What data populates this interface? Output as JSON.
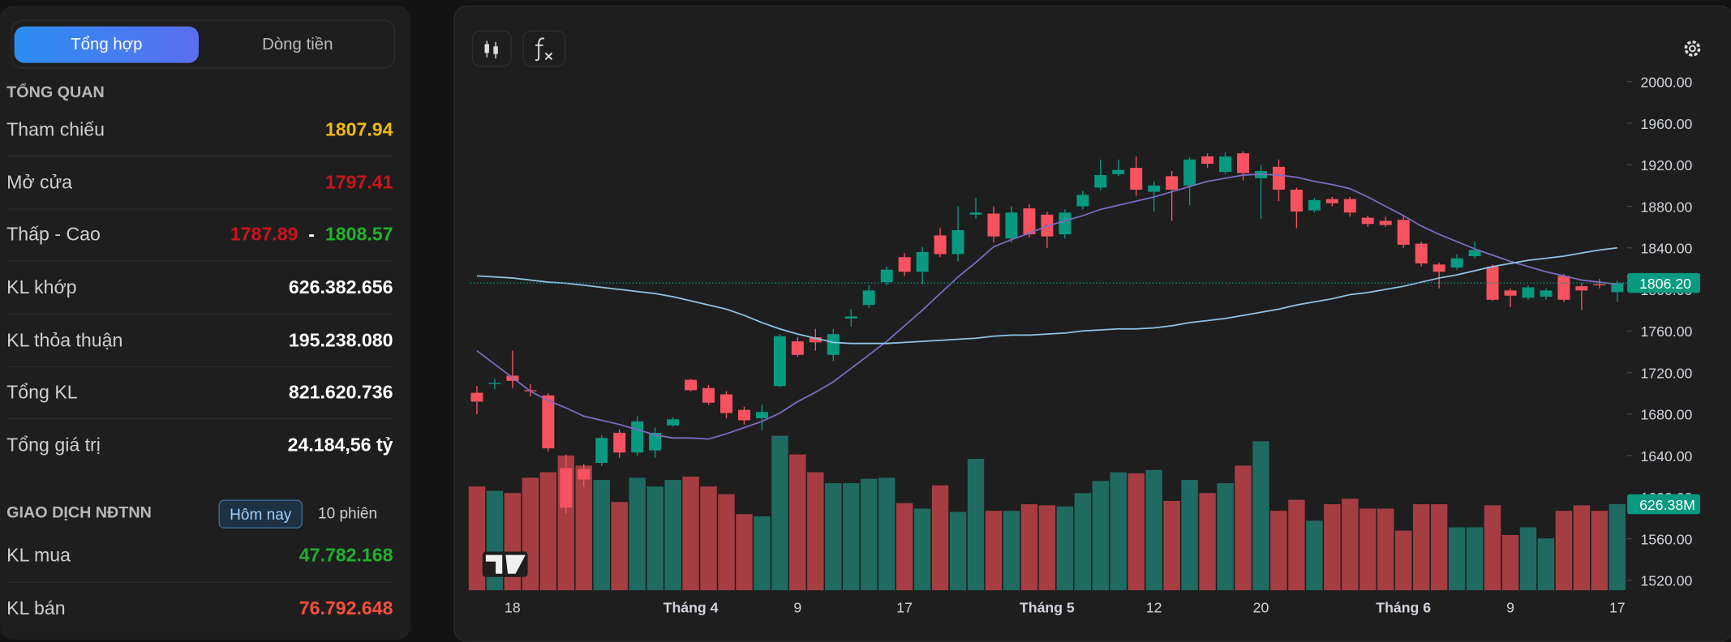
{
  "tabs": [
    "Tổng hợp",
    "Dòng tiền"
  ],
  "overview": {
    "title": "TỔNG QUAN",
    "rows": [
      {
        "label": "Tham chiếu",
        "value": "1807.94"
      },
      {
        "label": "Mở cửa",
        "value": "1797.41"
      },
      {
        "label": "Thấp - Cao",
        "low": "1787.89",
        "separator": "-",
        "high": "1808.57"
      },
      {
        "label": "KL khớp",
        "value": "626.382.656"
      },
      {
        "label": "KL thỏa thuận",
        "value": "195.238.080"
      },
      {
        "label": "Tổng KL",
        "value": "821.620.736"
      },
      {
        "label": "Tổng giá trị",
        "value": "24.184,56 tỷ"
      }
    ]
  },
  "foreign": {
    "title": "GIAO DỊCH NĐTNN",
    "buttons": [
      "Hôm nay",
      "10 phiên"
    ],
    "rows": [
      {
        "label": "KL mua",
        "value": "47.782.168"
      },
      {
        "label": "KL bán",
        "value": "76.792.648"
      }
    ]
  },
  "chart_data": {
    "type": "candlestick",
    "categories": [
      null,
      null,
      "18",
      null,
      null,
      null,
      null,
      null,
      null,
      null,
      null,
      null,
      "Tháng 4",
      null,
      null,
      null,
      null,
      null,
      "9",
      null,
      null,
      null,
      null,
      null,
      "17",
      null,
      null,
      null,
      null,
      null,
      null,
      null,
      "Tháng 5",
      null,
      null,
      null,
      null,
      null,
      "12",
      null,
      null,
      null,
      null,
      null,
      "20",
      null,
      null,
      null,
      null,
      null,
      null,
      null,
      "Tháng 6",
      null,
      null,
      null,
      null,
      null,
      "9",
      null,
      null,
      null,
      null,
      null,
      "17"
    ],
    "open": [
      1700.5,
      1709,
      1717,
      1703,
      1698,
      1628,
      1627,
      1633,
      1662,
      1643,
      1645,
      1669,
      1713,
      1705,
      1699,
      1684,
      1676,
      1707,
      1750,
      1754,
      1737,
      1772,
      1785,
      1807,
      1831,
      1817,
      1852,
      1834,
      1872,
      1873,
      1849,
      1878,
      1872,
      1853,
      1880,
      1898,
      1911,
      1917,
      1894,
      1909,
      1900,
      1928,
      1913,
      1931,
      1907,
      1918,
      1896,
      1876,
      1887,
      1887,
      1869,
      1866,
      1867,
      1844,
      1824,
      1821,
      1832,
      1822,
      1799,
      1792,
      1793,
      1813,
      1803,
      1805,
      1797.41
    ],
    "high": [
      1707,
      1714,
      1741,
      1709,
      1700,
      1641,
      1632,
      1660,
      1665,
      1678,
      1667,
      1677,
      1714,
      1708,
      1702,
      1687,
      1689,
      1757,
      1754,
      1762,
      1762,
      1781,
      1804,
      1822,
      1835,
      1841,
      1859,
      1880,
      1888,
      1880,
      1880,
      1882,
      1875,
      1877,
      1895,
      1925,
      1925,
      1928,
      1904,
      1914,
      1927,
      1931,
      1932,
      1933,
      1920,
      1925,
      1898,
      1888,
      1889,
      1889,
      1871,
      1870,
      1870,
      1846,
      1826,
      1834,
      1846,
      1824,
      1801,
      1804,
      1801,
      1815,
      1806,
      1810,
      1808.57
    ],
    "low": [
      1680,
      1704,
      1705,
      1697,
      1644,
      1584,
      1610,
      1630,
      1638,
      1640,
      1638,
      1668,
      1702,
      1689,
      1676,
      1670,
      1664,
      1706,
      1735,
      1741,
      1731,
      1764,
      1782,
      1804,
      1813,
      1805,
      1831,
      1827,
      1868,
      1845,
      1845,
      1850,
      1840,
      1849,
      1877,
      1895,
      1909,
      1890,
      1875,
      1866,
      1881,
      1917,
      1911,
      1905,
      1868,
      1885,
      1859,
      1874,
      1880,
      1870,
      1860,
      1860,
      1840,
      1822,
      1801,
      1819,
      1830,
      1789,
      1783,
      1790,
      1790,
      1788,
      1780,
      1801,
      1787.89
    ],
    "close": [
      1692,
      1710,
      1712,
      1702,
      1647,
      1590,
      1617,
      1657,
      1643,
      1673,
      1662,
      1675,
      1703,
      1691,
      1681,
      1674,
      1682,
      1755,
      1737,
      1749,
      1757,
      1774,
      1799,
      1819,
      1817,
      1836,
      1834,
      1857,
      1874,
      1851,
      1874,
      1853,
      1851,
      1874,
      1891,
      1910,
      1915,
      1896,
      1900,
      1896,
      1925,
      1921,
      1928,
      1912,
      1914,
      1896,
      1875,
      1886,
      1883,
      1874,
      1863,
      1862,
      1843,
      1825,
      1817,
      1830,
      1838,
      1790,
      1794,
      1802,
      1799,
      1790,
      1799,
      1804,
      1806.2
    ],
    "volume": [
      755,
      723,
      707,
      819,
      859,
      980,
      907,
      803,
      642,
      819,
      755,
      803,
      827,
      755,
      699,
      554,
      538,
      1124,
      988,
      859,
      779,
      779,
      811,
      819,
      634,
      594,
      763,
      570,
      956,
      578,
      578,
      626,
      618,
      610,
      707,
      795,
      859,
      851,
      875,
      650,
      803,
      707,
      779,
      907,
      1084,
      578,
      658,
      506,
      626,
      666,
      594,
      594,
      434,
      626,
      626,
      458,
      458,
      618,
      402,
      458,
      377,
      578,
      618,
      578,
      626.38
    ],
    "ma_lines": [
      {
        "color": "#7e6bc4",
        "values": [
          1741,
          1728,
          1715,
          1702,
          1693,
          1686,
          1678,
          1674,
          1670,
          1665,
          1660,
          1657,
          1657,
          1656,
          1661,
          1667,
          1673,
          1681,
          1692,
          1701,
          1711,
          1724,
          1737,
          1750,
          1765,
          1780,
          1796,
          1812,
          1826,
          1841,
          1848,
          1854,
          1861,
          1866,
          1871,
          1877,
          1881,
          1885,
          1889,
          1894,
          1899,
          1904,
          1907,
          1910,
          1911,
          1910,
          1908,
          1904,
          1901,
          1897,
          1889,
          1880,
          1871,
          1861,
          1853,
          1846,
          1839,
          1833,
          1827,
          1822,
          1817,
          1813,
          1809,
          1807,
          1805
        ]
      },
      {
        "color": "#8fc3e6",
        "values": [
          1813,
          1812,
          1811,
          1809,
          1807,
          1806,
          1804,
          1802,
          1800,
          1798,
          1796,
          1793,
          1789,
          1785,
          1781,
          1775,
          1768,
          1762,
          1757,
          1753,
          1749,
          1748,
          1748,
          1748,
          1749,
          1750,
          1751,
          1752,
          1753,
          1755,
          1756,
          1756,
          1757,
          1758,
          1760,
          1761,
          1762,
          1762,
          1763,
          1765,
          1768,
          1770,
          1772,
          1775,
          1778,
          1781,
          1785,
          1788,
          1791,
          1795,
          1797,
          1800,
          1803,
          1807,
          1811,
          1814,
          1818,
          1822,
          1825,
          1828,
          1830,
          1832,
          1835,
          1838,
          1840
        ]
      }
    ],
    "up_color": "#089981",
    "down_color": "#f7525f",
    "volume_up_color": "#1f6b61",
    "volume_down_color": "#a63d43",
    "ylim": [
      1520,
      2000
    ],
    "yticks": [
      {
        "value": 2000,
        "label": "2000.00"
      },
      {
        "value": 1960,
        "label": "1960.00"
      },
      {
        "value": 1920,
        "label": "1920.00"
      },
      {
        "value": 1880,
        "label": "1880.00"
      },
      {
        "value": 1840,
        "label": "1840.00"
      },
      {
        "value": 1800,
        "label": "1800.00"
      },
      {
        "value": 1760,
        "label": "1760.00"
      },
      {
        "value": 1720,
        "label": "1720.00"
      },
      {
        "value": 1680,
        "label": "1680.00"
      },
      {
        "value": 1640,
        "label": "1640.00"
      },
      {
        "value": 1600,
        "label": "1600.00"
      },
      {
        "value": 1560,
        "label": "1560.00"
      },
      {
        "value": 1520,
        "label": "1520.00"
      }
    ],
    "last_price_label": "1806.20",
    "last_volume_label": "626.38M"
  }
}
